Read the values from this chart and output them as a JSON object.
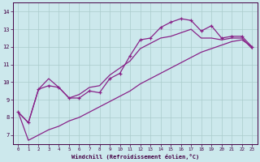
{
  "xlabel": "Windchill (Refroidissement éolien,°C)",
  "background_color": "#cce8ec",
  "grid_color": "#aacccc",
  "line_color": "#882288",
  "x_ticks": [
    0,
    1,
    2,
    3,
    4,
    5,
    6,
    7,
    8,
    9,
    10,
    11,
    12,
    13,
    14,
    15,
    16,
    17,
    18,
    19,
    20,
    21,
    22,
    23
  ],
  "y_ticks": [
    7,
    8,
    9,
    10,
    11,
    12,
    13,
    14
  ],
  "ylim": [
    6.5,
    14.5
  ],
  "xlim": [
    -0.5,
    23.5
  ],
  "series": [
    {
      "x": [
        0,
        1,
        2,
        3,
        4,
        5,
        6,
        7,
        8,
        9,
        10,
        11,
        12,
        13,
        14,
        15,
        16,
        17,
        18,
        19,
        20,
        21,
        22,
        23
      ],
      "y": [
        8.3,
        7.7,
        9.6,
        9.8,
        9.7,
        9.1,
        9.1,
        9.5,
        9.4,
        10.2,
        10.5,
        11.5,
        12.4,
        12.5,
        13.1,
        13.4,
        13.6,
        13.5,
        12.9,
        13.2,
        12.5,
        12.6,
        12.6,
        12.0
      ],
      "linestyle": "-",
      "marker": "+"
    },
    {
      "x": [
        0,
        1,
        2,
        3,
        4,
        5,
        6,
        7,
        8,
        9,
        10,
        11,
        12,
        13,
        14,
        15,
        16,
        17,
        18,
        19,
        20,
        21,
        22,
        23
      ],
      "y": [
        8.3,
        7.7,
        9.6,
        10.2,
        9.7,
        9.1,
        9.3,
        9.7,
        9.8,
        10.4,
        10.8,
        11.2,
        11.9,
        12.2,
        12.5,
        12.6,
        12.8,
        13.0,
        12.5,
        12.5,
        12.4,
        12.5,
        12.5,
        11.9
      ],
      "linestyle": "-",
      "marker": null
    },
    {
      "x": [
        0,
        1,
        2,
        3,
        4,
        5,
        6,
        7,
        8,
        9,
        10,
        11,
        12,
        13,
        14,
        15,
        16,
        17,
        18,
        19,
        20,
        21,
        22,
        23
      ],
      "y": [
        8.3,
        6.7,
        7.0,
        7.3,
        7.5,
        7.8,
        8.0,
        8.3,
        8.6,
        8.9,
        9.2,
        9.5,
        9.9,
        10.2,
        10.5,
        10.8,
        11.1,
        11.4,
        11.7,
        11.9,
        12.1,
        12.3,
        12.4,
        12.0
      ],
      "linestyle": "-",
      "marker": null
    }
  ]
}
